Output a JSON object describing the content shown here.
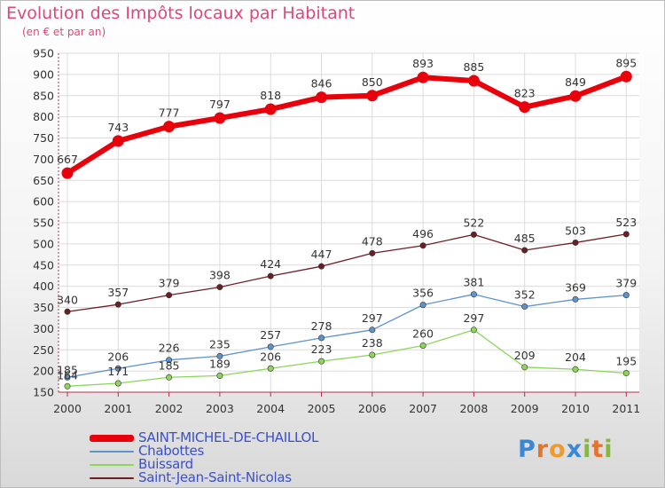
{
  "header": {
    "title": "Evolution des Impôts locaux par Habitant",
    "subtitle": "(en € et par an)"
  },
  "logo": {
    "text": "Proxiti",
    "letters": [
      "P",
      "r",
      "o",
      "x",
      "i",
      "t",
      "i"
    ],
    "colors": [
      "#3a88d4",
      "#e6732d",
      "#f09a2c",
      "#3a88d4",
      "#84b93a",
      "#e6732d",
      "#84b93a"
    ]
  },
  "chart_data": {
    "type": "line",
    "x": [
      "2000",
      "2001",
      "2002",
      "2003",
      "2004",
      "2005",
      "2006",
      "2007",
      "2008",
      "2009",
      "2010",
      "2011"
    ],
    "ylim": [
      150,
      950
    ],
    "yticks": [
      150,
      200,
      250,
      300,
      350,
      400,
      450,
      500,
      550,
      600,
      650,
      700,
      750,
      800,
      850,
      900,
      950
    ],
    "grid": true,
    "legend_position": "bottom-left",
    "series": [
      {
        "name": "SAINT-MICHEL-DE-CHAILLOL",
        "color": "#e8000b",
        "width": 6,
        "values": [
          667,
          743,
          777,
          797,
          818,
          846,
          850,
          893,
          885,
          823,
          849,
          895
        ]
      },
      {
        "name": "Chabottes",
        "color": "#5f93cc",
        "width": 1.3,
        "values": [
          185,
          206,
          226,
          235,
          257,
          278,
          297,
          356,
          381,
          352,
          369,
          379
        ]
      },
      {
        "name": "Buissard",
        "color": "#8cd65a",
        "width": 1.3,
        "values": [
          164,
          171,
          185,
          189,
          206,
          223,
          238,
          260,
          297,
          209,
          204,
          195
        ]
      },
      {
        "name": "Saint-Jean-Saint-Nicolas",
        "color": "#6b1f25",
        "width": 1.3,
        "values": [
          340,
          357,
          379,
          398,
          424,
          447,
          478,
          496,
          522,
          485,
          503,
          523
        ]
      }
    ]
  }
}
